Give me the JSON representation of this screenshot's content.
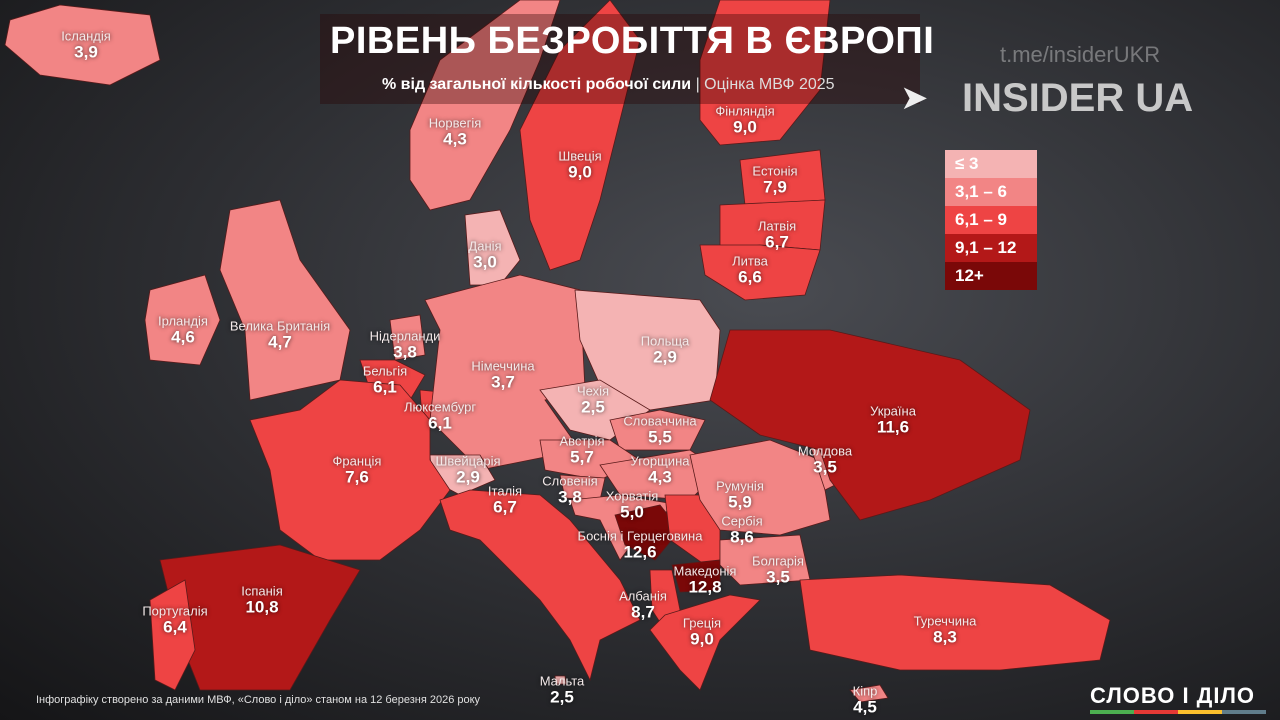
{
  "header": {
    "title": "РІВЕНЬ БЕЗРОБІТТЯ В ЄВРОПІ",
    "subtitle_main": "% від загальної кількості робочої сили",
    "subtitle_sep": " | ",
    "subtitle_source": "Оцінка МВФ 2025",
    "telegram": "t.me/insiderUKR",
    "telegram_icon": "paper-plane-icon",
    "brand": "INSIDER UA"
  },
  "legend": [
    {
      "label": "≤ 3",
      "color": "#f4b3b3"
    },
    {
      "label": "3,1 – 6",
      "color": "#f28585"
    },
    {
      "label": "6,1 – 9",
      "color": "#ee4444"
    },
    {
      "label": "9,1 – 12",
      "color": "#b31818"
    },
    {
      "label": "12+",
      "color": "#7a0808"
    }
  ],
  "countries": [
    {
      "name": "Ісландія",
      "value": "3,9"
    },
    {
      "name": "Норвегія",
      "value": "4,3"
    },
    {
      "name": "Швеція",
      "value": "9,0"
    },
    {
      "name": "Фінляндія",
      "value": "9,0"
    },
    {
      "name": "Естонія",
      "value": "7,9"
    },
    {
      "name": "Латвія",
      "value": "6,7"
    },
    {
      "name": "Литва",
      "value": "6,6"
    },
    {
      "name": "Данія",
      "value": "3,0"
    },
    {
      "name": "Ірландія",
      "value": "4,6"
    },
    {
      "name": "Велика Британія",
      "value": "4,7"
    },
    {
      "name": "Нідерланди",
      "value": "3,8"
    },
    {
      "name": "Бельгія",
      "value": "6,1"
    },
    {
      "name": "Люксембург",
      "value": "6,1"
    },
    {
      "name": "Німеччина",
      "value": "3,7"
    },
    {
      "name": "Польща",
      "value": "2,9"
    },
    {
      "name": "Чехія",
      "value": "2,5"
    },
    {
      "name": "Словаччина",
      "value": "5,5"
    },
    {
      "name": "Австрія",
      "value": "5,7"
    },
    {
      "name": "Угорщина",
      "value": "4,3"
    },
    {
      "name": "Швейцарія",
      "value": "2,9"
    },
    {
      "name": "Словенія",
      "value": "3,8"
    },
    {
      "name": "Хорватія",
      "value": "5,0"
    },
    {
      "name": "Боснія і Герцеговина",
      "value": "12,6"
    },
    {
      "name": "Сербія",
      "value": "8,6"
    },
    {
      "name": "Македонія",
      "value": "12,8"
    },
    {
      "name": "Албанія",
      "value": "8,7"
    },
    {
      "name": "Греція",
      "value": "9,0"
    },
    {
      "name": "Болгарія",
      "value": "3,5"
    },
    {
      "name": "Румунія",
      "value": "5,9"
    },
    {
      "name": "Молдова",
      "value": "3,5"
    },
    {
      "name": "Україна",
      "value": "11,6"
    },
    {
      "name": "Франція",
      "value": "7,6"
    },
    {
      "name": "Італія",
      "value": "6,7"
    },
    {
      "name": "Іспанія",
      "value": "10,8"
    },
    {
      "name": "Португалія",
      "value": "6,4"
    },
    {
      "name": "Туреччина",
      "value": "8,3"
    },
    {
      "name": "Мальта",
      "value": "2,5"
    },
    {
      "name": "Кіпр",
      "value": "4,5"
    }
  ],
  "footer": {
    "note": "Інфографіку створено за даними МВФ, «Слово і діло» станом на 12 березня 2026 року",
    "logo": "СЛОВО І ДІЛО"
  }
}
